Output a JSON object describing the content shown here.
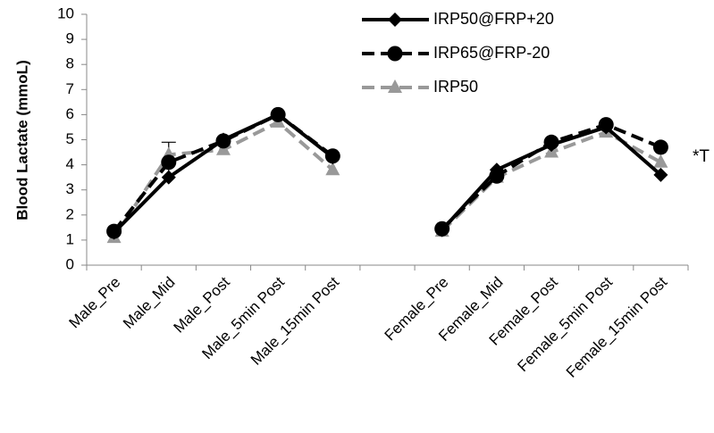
{
  "chart_data": {
    "type": "line",
    "title": "",
    "ylabel": "Blood Lactate (mmoL)",
    "xlabel": "",
    "ylim": [
      0,
      10
    ],
    "yticks": [
      "0",
      "1",
      "2",
      "3",
      "4",
      "5",
      "6",
      "7",
      "8",
      "9",
      "10"
    ],
    "categories": [
      "Male_Pre",
      "Male_Mid",
      "Male_Post",
      "Male_5min Post",
      "Male_15min Post",
      "",
      "Female_Pre",
      "Female_Mid",
      "Female_Post",
      "Female_5min Post",
      "Female_15min Post"
    ],
    "series": [
      {
        "name": "IRP50@FRP+20",
        "color": "#000000",
        "dash": "solid",
        "marker": "diamond",
        "values": [
          1.3,
          3.5,
          5.0,
          6.0,
          4.3,
          null,
          1.4,
          3.8,
          4.8,
          5.5,
          3.6
        ]
      },
      {
        "name": "IRP65@FRP-20",
        "color": "#000000",
        "dash": "dashed",
        "marker": "circle",
        "values": [
          1.35,
          4.1,
          4.95,
          6.0,
          4.35,
          null,
          1.45,
          3.55,
          4.9,
          5.6,
          4.7
        ]
      },
      {
        "name": "IRP50",
        "color": "#999999",
        "dash": "dashed",
        "marker": "triangle",
        "values": [
          1.1,
          4.4,
          4.6,
          5.7,
          3.8,
          null,
          1.35,
          3.5,
          4.5,
          5.3,
          4.1
        ]
      }
    ],
    "error_bars": [
      {
        "category_index": 1,
        "upper": 4.9
      }
    ],
    "legend_position": "top-right",
    "annotation": "*T",
    "grid": false
  }
}
